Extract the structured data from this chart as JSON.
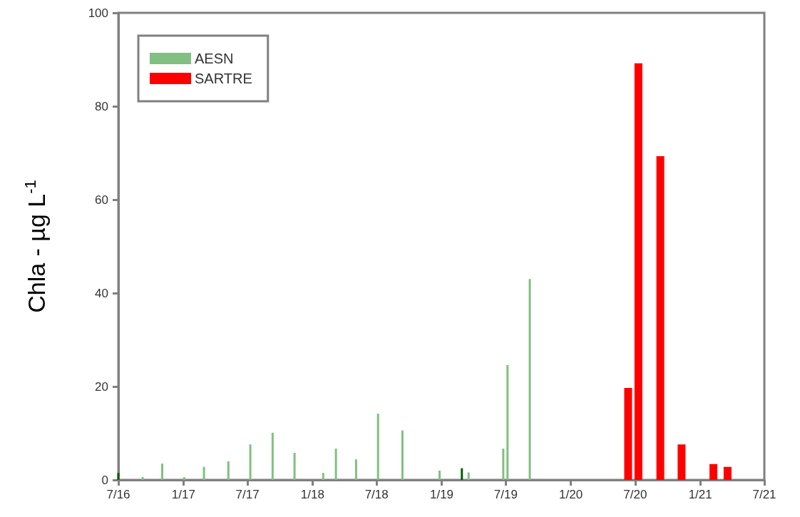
{
  "chart_data": {
    "type": "bar",
    "ylabel": "Chla - µg L$^{-1}$",
    "series": [
      {
        "name": "AESN",
        "color": "#80c080",
        "colors": [
          "#006000",
          "#80c080",
          "#80c080",
          "#80c080",
          "#80c080",
          "#80c080",
          "#80c080",
          "#80c080",
          "#80c080",
          "#80c080",
          "#80c080",
          "#80c080",
          "#80c080",
          "#80c080",
          "#80c080",
          "#006000",
          "#80c080",
          "#80c080",
          "#80c080",
          "#80c080"
        ],
        "x": [
          "2016-07-01",
          "2016-09-08",
          "2016-11-02",
          "2017-01-03",
          "2017-02-28",
          "2017-05-08",
          "2017-07-09",
          "2017-09-10",
          "2017-11-11",
          "2018-01-31",
          "2018-03-08",
          "2018-05-04",
          "2018-07-05",
          "2018-09-12",
          "2018-12-26",
          "2019-02-27",
          "2019-03-18",
          "2019-06-24",
          "2019-07-06",
          "2019-09-07"
        ],
        "values": [
          1.5,
          0.6,
          3.5,
          0.6,
          2.8,
          4.0,
          7.6,
          10.1,
          5.8,
          1.5,
          6.7,
          4.4,
          14.2,
          10.6,
          2.0,
          2.5,
          1.6,
          6.7,
          24.6,
          43.0
        ]
      },
      {
        "name": "SARTRE",
        "color": "#ff0000",
        "x": [
          "2020-06-11",
          "2020-07-10",
          "2020-09-10",
          "2020-11-09",
          "2021-02-07",
          "2021-03-19"
        ],
        "values": [
          19.7,
          89.2,
          69.3,
          7.6,
          3.4,
          2.8
        ]
      }
    ],
    "xlim": [
      "2016-07-01",
      "2021-07-01"
    ],
    "xticks": [
      {
        "value": "2016-07-01",
        "label": "7/16"
      },
      {
        "value": "2017-01-01",
        "label": "1/17"
      },
      {
        "value": "2017-07-01",
        "label": "7/17"
      },
      {
        "value": "2018-01-01",
        "label": "1/18"
      },
      {
        "value": "2018-07-01",
        "label": "7/18"
      },
      {
        "value": "2019-01-01",
        "label": "1/19"
      },
      {
        "value": "2019-07-01",
        "label": "7/19"
      },
      {
        "value": "2020-01-01",
        "label": "1/20"
      },
      {
        "value": "2020-07-01",
        "label": "7/20"
      },
      {
        "value": "2021-01-01",
        "label": "1/21"
      },
      {
        "value": "2021-07-01",
        "label": "7/21"
      }
    ],
    "ylim": [
      0,
      100
    ],
    "yticks": [
      0,
      20,
      40,
      60,
      80,
      100
    ],
    "grid": false,
    "legend": "top left"
  }
}
